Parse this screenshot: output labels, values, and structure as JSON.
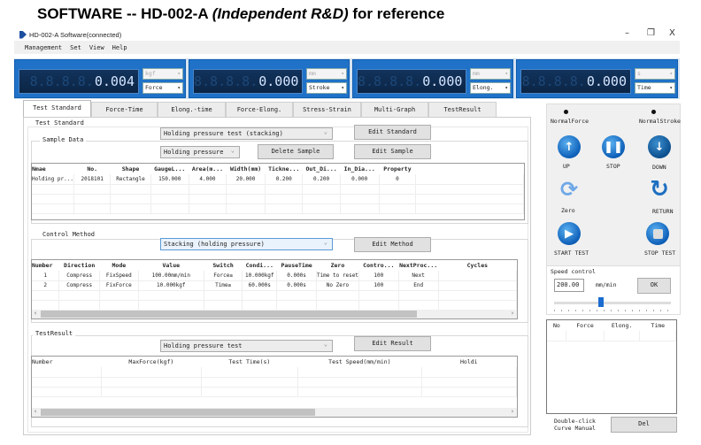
{
  "heading": {
    "main": "SOFTWARE -- HD-002-A ",
    "italic": "(Independent R&D)",
    "tail": " for reference"
  },
  "window": {
    "title": "HD-002-A Software(connected)",
    "minimize": "–",
    "maximize": "❐",
    "close": "X"
  },
  "menu": [
    "Management",
    "Set",
    "View",
    "Help"
  ],
  "displays": [
    {
      "value": "0.004",
      "ghost": "8.8.8.8.",
      "unit": "kgf",
      "channel": "Force"
    },
    {
      "value": "0.000",
      "ghost": "8.8.8.8.",
      "unit": "mm",
      "channel": "Stroke"
    },
    {
      "value": "0.000",
      "ghost": "8.8.8.8.",
      "unit": "mm",
      "channel": "Elong."
    },
    {
      "value": "0.000",
      "ghost": "8.8.8.8.",
      "unit": "s",
      "channel": "Time"
    }
  ],
  "tabs": [
    "Test Standard",
    "Force-Time",
    "Elong.-time",
    "Force-Elong.",
    "Stress-Strain",
    "Multi-Graph",
    "TestResult"
  ],
  "test_standard": {
    "label": "Test Standard",
    "select": "Holding pressure test (stacking)",
    "edit": "Edit Standard"
  },
  "sample_data": {
    "label": "Sample Data",
    "select": "Holding pressure",
    "delete": "Delete Sample",
    "edit": "Edit Sample",
    "columns": [
      "Nmae",
      "No.",
      "Shape",
      "GaugeL...",
      "Area(m...",
      "Width(mm)",
      "Tickne...",
      "Out_Di...",
      "In_Dia...",
      "Property",
      ""
    ],
    "rows": [
      [
        "Holding pr...",
        "2018101",
        "Rectangle",
        "150.000",
        "4.000",
        "20.000",
        "0.200",
        "0.200",
        "0.000",
        "0",
        ""
      ]
    ]
  },
  "control_method": {
    "label": "Control Method",
    "select": "Stacking (holding pressure)",
    "edit": "Edit Method",
    "columns": [
      "Number",
      "Direction",
      "Mode",
      "Value",
      "Switch",
      "Condi...",
      "PauseTime",
      "Zero",
      "Contro...",
      "NextProc...",
      "Cycles"
    ],
    "rows": [
      [
        "1",
        "Compress",
        "FixSpeed",
        "100.00mm/min",
        "Force≥",
        "10.000kgf",
        "0.000s",
        "Time to reset",
        "100",
        "Next",
        ""
      ],
      [
        "2",
        "Compress",
        "FixForce",
        "10.000kgf",
        "Time≥",
        "60.000s",
        "0.000s",
        "No Zero",
        "100",
        "End",
        ""
      ]
    ]
  },
  "test_result": {
    "label": "TestResult",
    "select": "Holding pressure test",
    "edit": "Edit Result",
    "columns": [
      "Number",
      "MaxForce(kgf)",
      "Test Time(s)",
      "Test Speed(mm/min)",
      "Holdi"
    ],
    "rows": []
  },
  "controls": {
    "normal_force": "NormalForce",
    "normal_stroke": "NormalStroke",
    "up": "UP",
    "stop": "STOP",
    "down": "DOWN",
    "zero": "Zero",
    "return": "RETURN",
    "start_test": "START TEST",
    "stop_test": "STOP TEST"
  },
  "speed_control": {
    "label": "Speed control",
    "value": "200.00",
    "unit": "mm/min",
    "ok": "OK",
    "slider_fraction": 0.4
  },
  "curve_table": {
    "columns": [
      "No",
      "Force",
      "Elong.",
      "Time"
    ]
  },
  "footer": {
    "hint_line1": "Double-click",
    "hint_line2": "Curve Manual",
    "del": "Del"
  },
  "colors": {
    "display_blue": "#1f72c8",
    "lcd_bg": "#0b2545",
    "button_blue": "#0d5fb8"
  }
}
